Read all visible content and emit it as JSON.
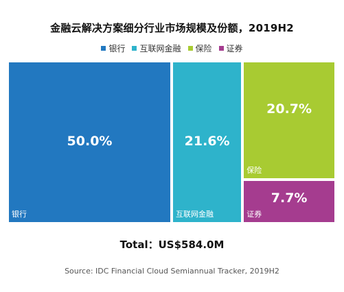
{
  "chart_data": {
    "type": "treemap",
    "title": "金融云解决方案细分行业市场规模及份额，2019H2",
    "categories": [
      "银行",
      "互联网金融",
      "保险",
      "证券"
    ],
    "values": [
      50.0,
      21.6,
      20.7,
      7.7
    ],
    "value_labels": [
      "50.0%",
      "21.6%",
      "20.7%",
      "7.7%"
    ],
    "colors": [
      "#2278c0",
      "#2eb3cb",
      "#a8cb32",
      "#a53c8f"
    ],
    "legend_placement": "top-center",
    "total": "Total：US$584.0M",
    "source": "Source: IDC Financial Cloud Semiannual Tracker, 2019H2"
  }
}
